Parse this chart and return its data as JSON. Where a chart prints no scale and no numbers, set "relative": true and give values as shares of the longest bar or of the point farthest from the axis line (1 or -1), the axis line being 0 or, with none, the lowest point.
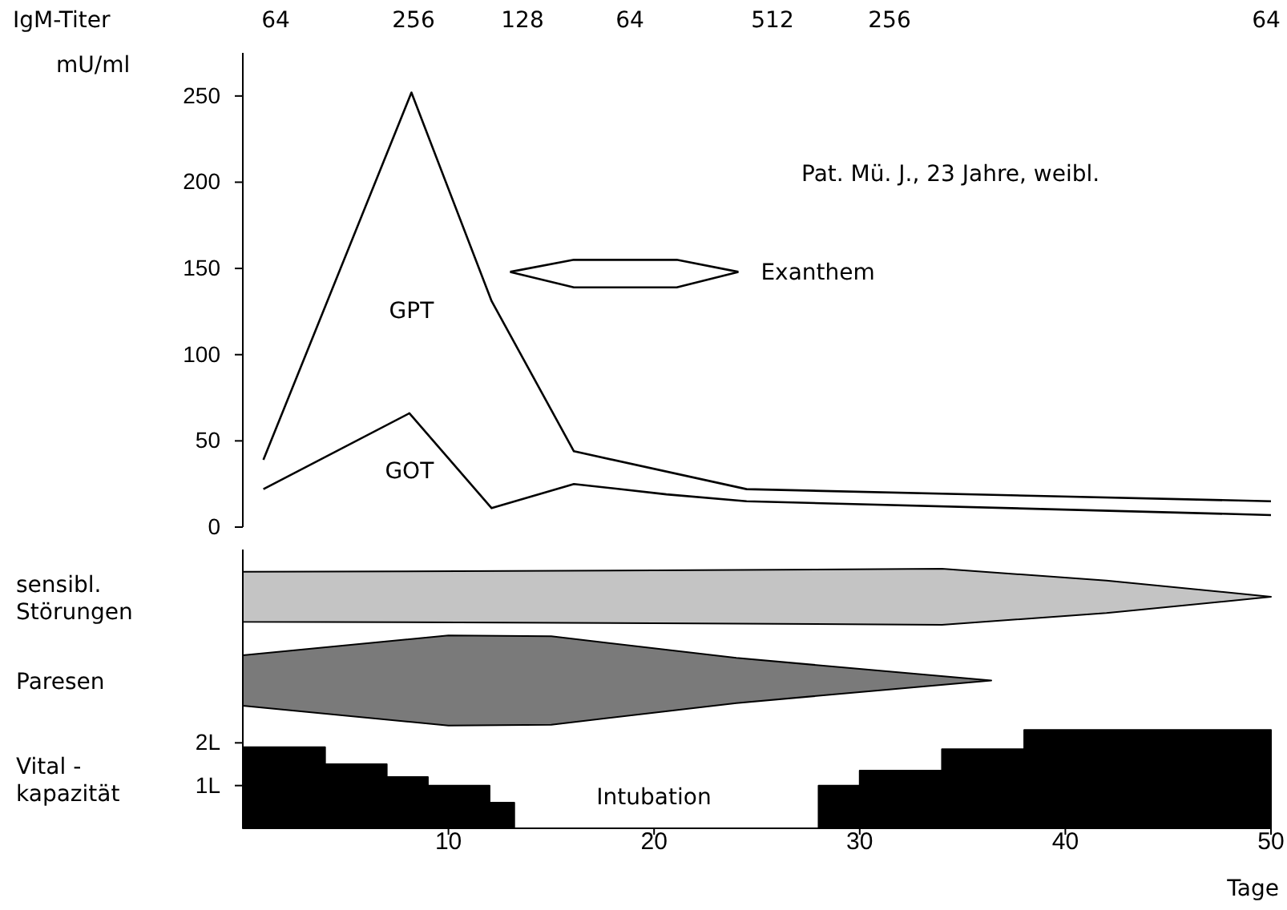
{
  "chart_data": [
    {
      "type": "line",
      "ylabel": "mU/ml",
      "xlim": [
        0,
        50
      ],
      "ylim": [
        0,
        275
      ],
      "yticks": [
        0,
        50,
        100,
        150,
        200,
        250
      ],
      "tick_labels": "y",
      "legend": false,
      "marker": "none",
      "line_style": "solid",
      "grid": false,
      "series": [
        {
          "name": "GPT",
          "color": "#000000",
          "x": [
            1,
            8.2,
            12.1,
            16.1,
            24.5,
            50
          ],
          "values": [
            39,
            252,
            131,
            44,
            22,
            15
          ]
        },
        {
          "name": "GOT",
          "color": "#000000",
          "x": [
            1,
            8.1,
            12.1,
            16.1,
            20.6,
            24.5,
            50
          ],
          "values": [
            22,
            66,
            11,
            25,
            19,
            15,
            7
          ]
        },
        {
          "name": "Exanthem",
          "color": "#000000",
          "x": [
            13,
            16.1,
            21.1,
            24.1
          ],
          "values": [
            148,
            155,
            155,
            148
          ]
        },
        {
          "color": "#000000",
          "x": [
            13,
            16.1,
            21.1,
            24.1
          ],
          "values": [
            148,
            139,
            139,
            148
          ]
        }
      ],
      "annotations": [
        "IgM-Titer",
        "64",
        "256",
        "128",
        "64",
        "512",
        "256",
        "64",
        "Pat. Mü. J., 23 Jahre, weibl."
      ]
    },
    {
      "type": "area",
      "relative": true,
      "xlim": [
        0,
        50
      ],
      "tick_labels": false,
      "series": [
        {
          "name": "sensibl.\nStörungen",
          "color": "#c4c4c4",
          "x": [
            0,
            20,
            34,
            42,
            50
          ],
          "values": [
            0.89,
            0.94,
            1,
            0.58,
            0
          ]
        }
      ]
    },
    {
      "type": "area",
      "relative": true,
      "xlim": [
        0,
        50
      ],
      "tick_labels": false,
      "series": [
        {
          "name": "Paresen",
          "color": "#7a7a7a",
          "x": [
            0,
            10,
            15,
            24,
            36.4
          ],
          "values": [
            0.56,
            1,
            0.98,
            0.5,
            0
          ]
        }
      ]
    },
    {
      "type": "area",
      "ylabel": "Vital -\nkapazität",
      "xlabel": "Tage",
      "xlim": [
        0,
        50
      ],
      "xticks": [
        10,
        20,
        30,
        40,
        50
      ],
      "ylim": [
        0,
        2.4
      ],
      "yticks": [
        {
          "value": 1,
          "label": "1L"
        },
        {
          "value": 2,
          "label": "2L"
        }
      ],
      "series": [
        {
          "color": "#000000",
          "x": [
            0,
            4,
            4,
            7,
            7,
            9,
            9,
            12,
            12,
            13.2,
            20,
            28,
            30,
            30,
            34,
            34,
            38,
            38,
            50
          ],
          "values": [
            1.9,
            1.9,
            1.5,
            1.5,
            1.2,
            1.2,
            1.0,
            1.0,
            0.6,
            0.6,
            null,
            1.0,
            1.0,
            1.35,
            1.35,
            1.85,
            1.85,
            2.3,
            2.3
          ]
        }
      ],
      "annotations": [
        "Intubation"
      ]
    }
  ]
}
